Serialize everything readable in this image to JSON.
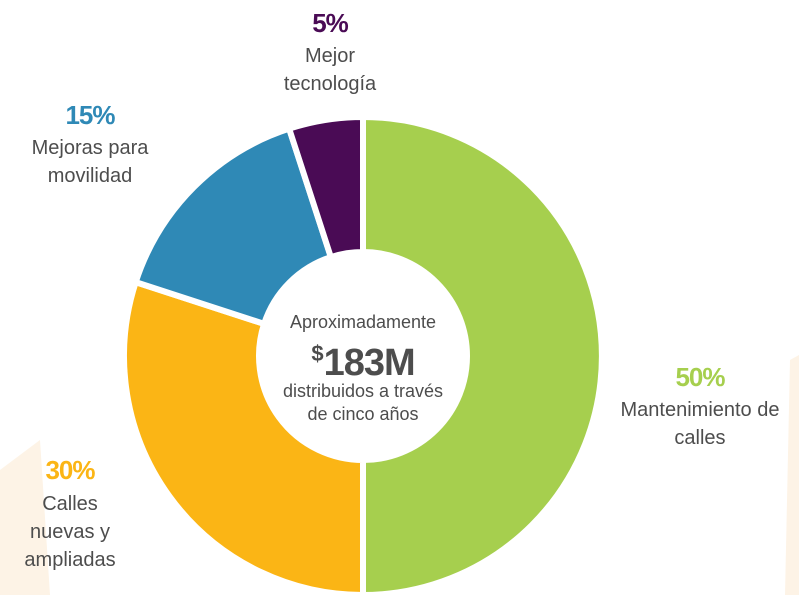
{
  "chart_data": {
    "type": "donut",
    "categories": [
      "Mantenimiento de calles",
      "Calles nuevas y ampliadas",
      "Mejoras para movilidad",
      "Mejor tecnología"
    ],
    "values": [
      50,
      30,
      15,
      5
    ],
    "value_labels": [
      "50%",
      "30%",
      "15%",
      "5%"
    ],
    "colors": [
      "#a6cf4e",
      "#fbb515",
      "#2f89b6",
      "#4a0b55"
    ],
    "center": {
      "intro": "Aproximadamente",
      "currency": "$",
      "amount": "183M",
      "note": "distribuidos a través de cinco años"
    }
  }
}
